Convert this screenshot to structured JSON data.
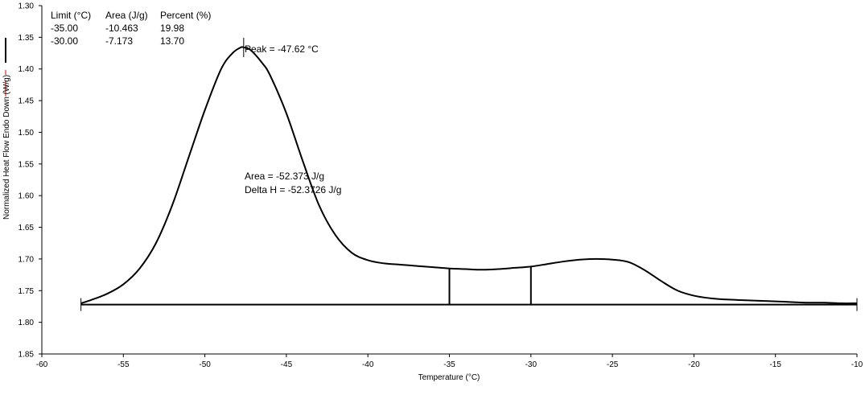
{
  "chart_data": {
    "type": "line",
    "xlabel": "Temperature (°C)",
    "ylabel": "Normalized Heat Flow Endo Down (W/g)",
    "xlim": [
      -60,
      -10
    ],
    "ylim": [
      1.85,
      1.3
    ],
    "y_inverted": true,
    "grid": false,
    "x_ticks": [
      -60,
      -55,
      -50,
      -45,
      -40,
      -35,
      -30,
      -25,
      -20,
      -15,
      -10
    ],
    "y_ticks": [
      1.3,
      1.35,
      1.4,
      1.45,
      1.5,
      1.55,
      1.6,
      1.65,
      1.7,
      1.75,
      1.8,
      1.85
    ],
    "series": [
      {
        "name": "",
        "x": [
          -57.6,
          -57.0,
          -56.0,
          -55.0,
          -54.0,
          -53.0,
          -52.0,
          -51.0,
          -50.0,
          -49.0,
          -48.3,
          -47.8,
          -47.62,
          -47.2,
          -46.5,
          -46.0,
          -45.0,
          -44.0,
          -43.0,
          -42.0,
          -41.0,
          -40.0,
          -39.0,
          -38.0,
          -37.0,
          -36.0,
          -35.0,
          -34.0,
          -33.0,
          -32.0,
          -31.0,
          -30.0,
          -29.0,
          -28.0,
          -27.0,
          -26.0,
          -25.0,
          -24.0,
          -23.0,
          -22.0,
          -21.0,
          -20.0,
          -19.0,
          -18.0,
          -17.0,
          -16.0,
          -15.0,
          -14.0,
          -13.0,
          -12.0,
          -11.0,
          -10.0
        ],
        "y": [
          1.77,
          1.765,
          1.755,
          1.74,
          1.715,
          1.675,
          1.615,
          1.54,
          1.465,
          1.4,
          1.375,
          1.366,
          1.366,
          1.37,
          1.39,
          1.41,
          1.47,
          1.545,
          1.615,
          1.662,
          1.69,
          1.702,
          1.707,
          1.709,
          1.711,
          1.713,
          1.715,
          1.716,
          1.717,
          1.716,
          1.714,
          1.712,
          1.708,
          1.704,
          1.701,
          1.7,
          1.701,
          1.705,
          1.718,
          1.735,
          1.75,
          1.758,
          1.762,
          1.764,
          1.765,
          1.766,
          1.767,
          1.768,
          1.769,
          1.769,
          1.77,
          1.77
        ]
      }
    ],
    "baseline": {
      "x": [
        -57.6,
        -10.0
      ],
      "y": [
        1.772,
        1.772
      ]
    },
    "limit_lines": [
      {
        "x": -35.0,
        "y_top": 1.715,
        "y_bottom": 1.772
      },
      {
        "x": -30.0,
        "y_top": 1.712,
        "y_bottom": 1.772
      }
    ],
    "peak_marker": {
      "x": -47.62,
      "y": 1.366
    },
    "annotations": {
      "peak": "Peak = -47.62 °C",
      "area": "Area = -52.373 J/g",
      "delta_h": "Delta H = -52.3726 J/g"
    },
    "partial_area_table": {
      "headers": [
        "Limit (°C)",
        "Area (J/g)",
        "Percent (%)"
      ],
      "rows": [
        [
          "-35.00",
          "-10.463",
          "19.98"
        ],
        [
          "-30.00",
          "-7.173",
          "13.70"
        ]
      ]
    },
    "legend_strip_colors": [
      "#000000",
      "#cc0000",
      "#cc0000"
    ]
  }
}
